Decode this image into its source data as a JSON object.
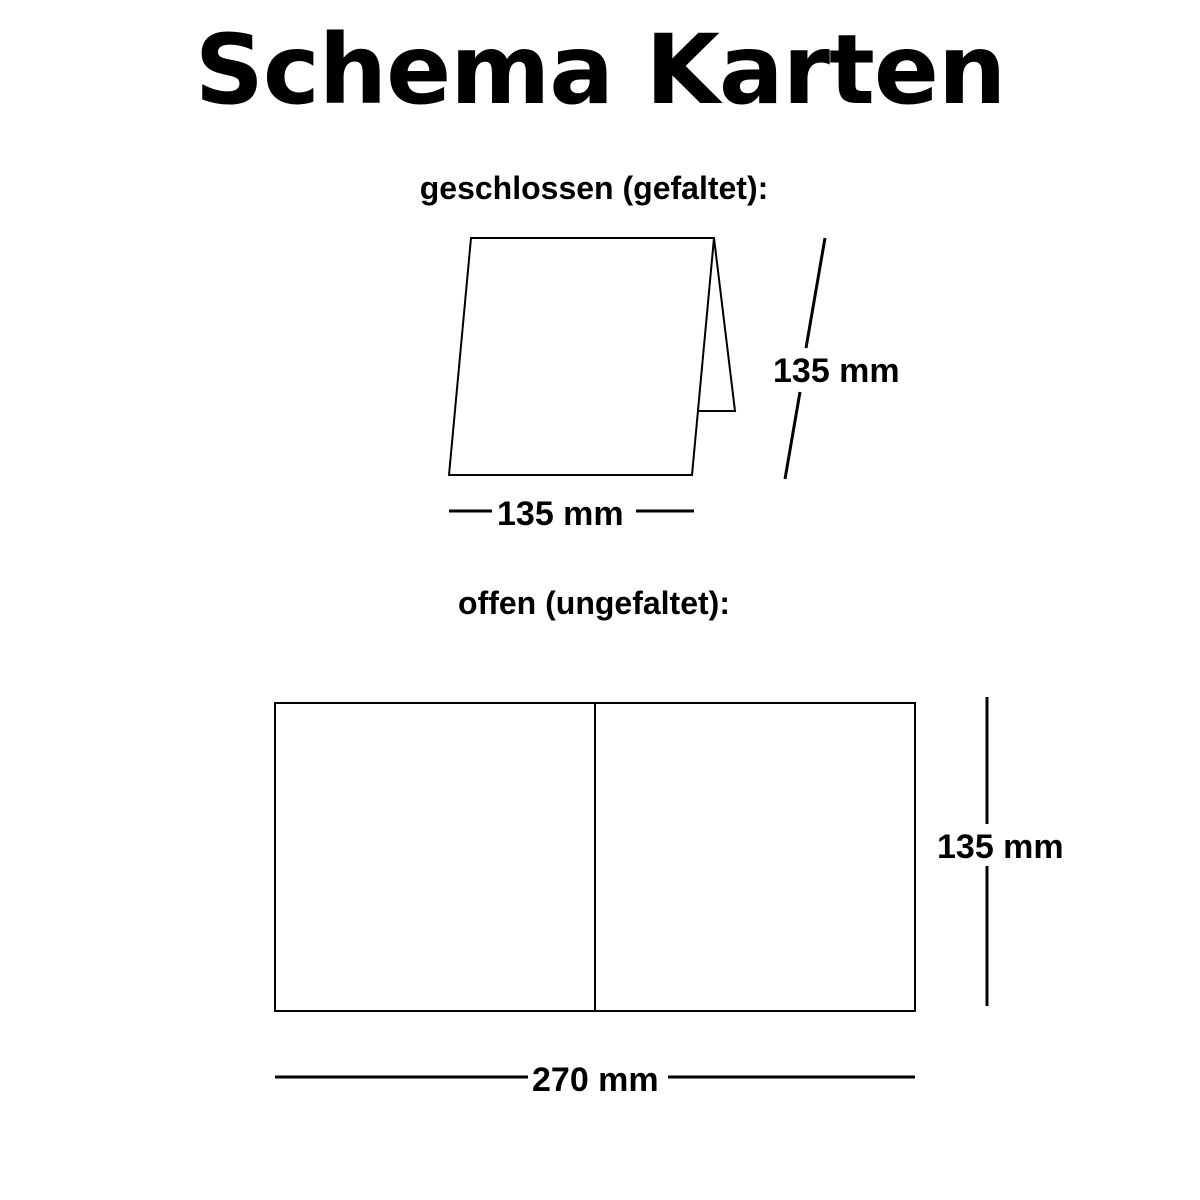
{
  "title": "Schema Karten",
  "closed": {
    "heading": "geschlossen (gefaltet):",
    "width_label": "135 mm",
    "height_label": "135 mm"
  },
  "open": {
    "heading": "offen (ungefaltet):",
    "width_label": "270 mm",
    "height_label": "135 mm"
  }
}
